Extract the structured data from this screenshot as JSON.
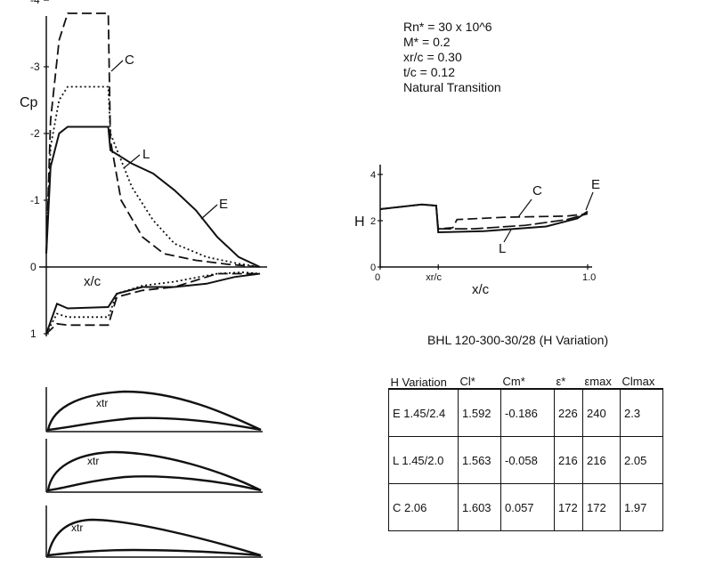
{
  "conditions": {
    "rn": "Rn* = 30 x 10^6",
    "mach": "M* = 0.2",
    "xr": "xr/c = 0.30",
    "tc": "t/c = 0.12",
    "transition": "Natural Transition"
  },
  "cp_chart": {
    "ylabel": "Cp",
    "xlabel": "x/c",
    "yticks": [
      "-4",
      "-3",
      "-2",
      "-1",
      "0",
      "1"
    ],
    "curve_labels": [
      "C",
      "L",
      "E"
    ]
  },
  "h_chart": {
    "ylabel": "H",
    "xlabel": "x/c",
    "yticks": [
      "4",
      "2",
      "0"
    ],
    "xticks": [
      "0",
      "xr/c",
      "1.0"
    ],
    "curve_labels": [
      "C",
      "L",
      "E"
    ]
  },
  "airfoils": {
    "label": "xtr"
  },
  "chart_data": [
    {
      "type": "line",
      "xlabel": "x/c",
      "ylabel": "Cp",
      "xlim": [
        0,
        1
      ],
      "ylim": [
        -4,
        1
      ],
      "y_inverted": true,
      "series": [
        {
          "name": "C",
          "style": "dashed",
          "upper": [
            [
              0,
              -0.2
            ],
            [
              0.02,
              -2.2
            ],
            [
              0.06,
              -3.4
            ],
            [
              0.1,
              -3.8
            ],
            [
              0.29,
              -3.8
            ],
            [
              0.3,
              -1.9
            ],
            [
              0.35,
              -1.0
            ],
            [
              0.45,
              -0.45
            ],
            [
              0.55,
              -0.2
            ],
            [
              0.7,
              -0.1
            ],
            [
              0.85,
              -0.04
            ],
            [
              1.0,
              0.0
            ]
          ],
          "lower": [
            [
              0,
              1.0
            ],
            [
              0.05,
              0.85
            ],
            [
              0.1,
              0.87
            ],
            [
              0.29,
              0.87
            ],
            [
              0.33,
              0.45
            ],
            [
              0.45,
              0.35
            ],
            [
              0.6,
              0.3
            ],
            [
              0.8,
              0.1
            ],
            [
              0.9,
              0.1
            ],
            [
              1.0,
              0.1
            ]
          ]
        },
        {
          "name": "L",
          "style": "dotted",
          "upper": [
            [
              0,
              -0.2
            ],
            [
              0.02,
              -1.8
            ],
            [
              0.06,
              -2.5
            ],
            [
              0.1,
              -2.7
            ],
            [
              0.29,
              -2.7
            ],
            [
              0.3,
              -2.0
            ],
            [
              0.4,
              -1.2
            ],
            [
              0.5,
              -0.7
            ],
            [
              0.6,
              -0.35
            ],
            [
              0.75,
              -0.15
            ],
            [
              0.9,
              -0.05
            ],
            [
              1.0,
              0.0
            ]
          ],
          "lower": [
            [
              0,
              1.0
            ],
            [
              0.05,
              0.7
            ],
            [
              0.1,
              0.75
            ],
            [
              0.29,
              0.75
            ],
            [
              0.33,
              0.4
            ],
            [
              0.45,
              0.28
            ],
            [
              0.6,
              0.22
            ],
            [
              0.8,
              0.1
            ],
            [
              0.92,
              0.08
            ],
            [
              1.0,
              0.1
            ]
          ]
        },
        {
          "name": "E",
          "style": "solid",
          "upper": [
            [
              0,
              -0.2
            ],
            [
              0.02,
              -1.5
            ],
            [
              0.06,
              -2.0
            ],
            [
              0.1,
              -2.1
            ],
            [
              0.29,
              -2.1
            ],
            [
              0.3,
              -1.75
            ],
            [
              0.4,
              -1.55
            ],
            [
              0.5,
              -1.4
            ],
            [
              0.6,
              -1.15
            ],
            [
              0.7,
              -0.85
            ],
            [
              0.8,
              -0.45
            ],
            [
              0.9,
              -0.15
            ],
            [
              1.0,
              0.0
            ]
          ],
          "lower": [
            [
              0,
              1.0
            ],
            [
              0.05,
              0.55
            ],
            [
              0.1,
              0.62
            ],
            [
              0.29,
              0.6
            ],
            [
              0.33,
              0.4
            ],
            [
              0.45,
              0.3
            ],
            [
              0.6,
              0.3
            ],
            [
              0.75,
              0.25
            ],
            [
              0.88,
              0.15
            ],
            [
              1.0,
              0.1
            ]
          ]
        }
      ]
    },
    {
      "type": "line",
      "xlabel": "x/c",
      "ylabel": "H",
      "xlim": [
        0,
        1
      ],
      "ylim": [
        0,
        4.5
      ],
      "series": [
        {
          "name": "C",
          "style": "dashed",
          "points": [
            [
              0,
              2.5
            ],
            [
              0.2,
              2.7
            ],
            [
              0.27,
              2.65
            ],
            [
              0.28,
              1.65
            ],
            [
              0.35,
              1.7
            ],
            [
              0.37,
              2.05
            ],
            [
              0.6,
              2.15
            ],
            [
              0.9,
              2.2
            ],
            [
              1.0,
              2.3
            ]
          ]
        },
        {
          "name": "L",
          "style": "long-dashed",
          "points": [
            [
              0,
              2.5
            ],
            [
              0.2,
              2.7
            ],
            [
              0.27,
              2.65
            ],
            [
              0.28,
              1.65
            ],
            [
              0.45,
              1.65
            ],
            [
              0.7,
              1.8
            ],
            [
              0.9,
              2.05
            ],
            [
              1.0,
              2.3
            ]
          ]
        },
        {
          "name": "E",
          "style": "solid",
          "points": [
            [
              0,
              2.5
            ],
            [
              0.2,
              2.7
            ],
            [
              0.27,
              2.65
            ],
            [
              0.28,
              1.5
            ],
            [
              0.5,
              1.55
            ],
            [
              0.8,
              1.75
            ],
            [
              0.95,
              2.1
            ],
            [
              1.0,
              2.4
            ]
          ]
        }
      ]
    },
    {
      "type": "table",
      "title": "BHL 120-300-30/28 (H Variation)",
      "columns": [
        "H Variation",
        "Cl*",
        "Cm*",
        "ε*",
        "εmax",
        "Clmax"
      ],
      "rows": [
        [
          "E 1.45/2.4",
          "1.592",
          "-0.186",
          "226",
          "240",
          "2.3"
        ],
        [
          "L 1.45/2.0",
          "1.563",
          "-0.058",
          "216",
          "216",
          "2.05"
        ],
        [
          "C 2.06",
          "1.603",
          "0.057",
          "172",
          "172",
          "1.97"
        ]
      ]
    }
  ]
}
